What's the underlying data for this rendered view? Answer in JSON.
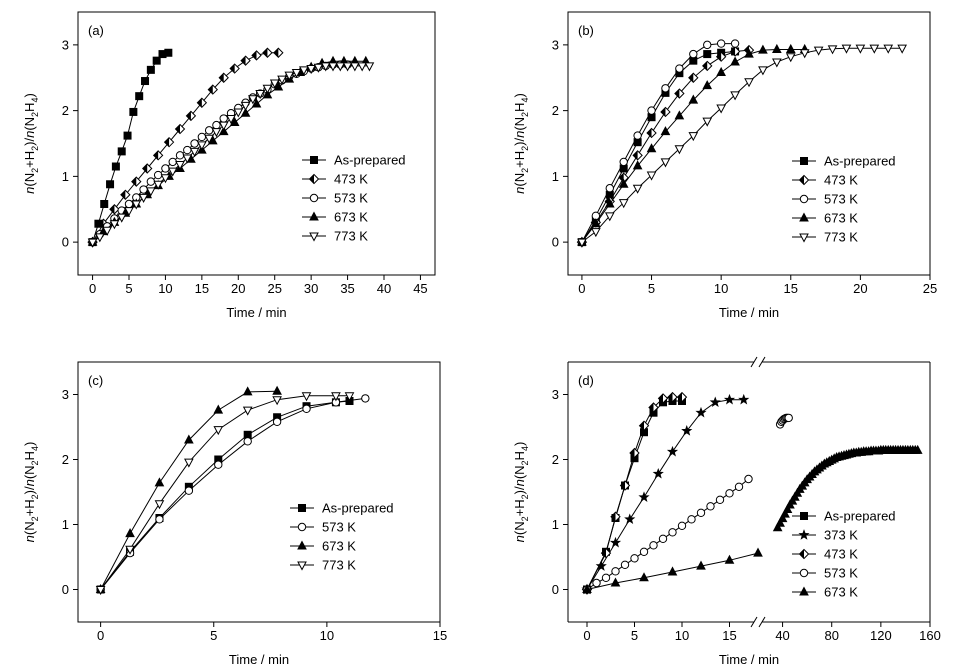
{
  "chart_data": [
    {
      "type": "line",
      "panel_label": "(a)",
      "xlabel": "Time / min",
      "ylabel_parts": [
        "n",
        "(N",
        "2",
        "+H",
        "2",
        ")/",
        "n",
        "(N",
        "2",
        "H",
        "4",
        ")"
      ],
      "xlim": [
        -2,
        47
      ],
      "ylim": [
        -0.5,
        3.5
      ],
      "xticks": [
        0,
        5,
        10,
        15,
        20,
        25,
        30,
        35,
        40,
        45
      ],
      "yticks": [
        0,
        1,
        2,
        3
      ],
      "legend_position": "right-middle",
      "series": [
        {
          "name": "As-prepared",
          "marker": "square-filled",
          "x": [
            0,
            0.8,
            1.6,
            2.4,
            3.2,
            4.0,
            4.8,
            5.6,
            6.4,
            7.2,
            8.0,
            8.8,
            9.6,
            10.4
          ],
          "y": [
            0,
            0.28,
            0.58,
            0.88,
            1.15,
            1.38,
            1.62,
            1.98,
            2.22,
            2.45,
            2.62,
            2.76,
            2.86,
            2.88
          ]
        },
        {
          "name": "473 K",
          "marker": "diamond-half",
          "x": [
            0,
            1.5,
            3,
            4.5,
            6,
            7.5,
            9,
            10.5,
            12,
            13.5,
            15,
            16.5,
            18,
            19.5,
            21,
            22.5,
            24,
            25.5
          ],
          "y": [
            0,
            0.28,
            0.5,
            0.72,
            0.92,
            1.12,
            1.32,
            1.52,
            1.72,
            1.92,
            2.12,
            2.32,
            2.5,
            2.64,
            2.76,
            2.84,
            2.88,
            2.88
          ]
        },
        {
          "name": "573 K",
          "marker": "circle-open",
          "x": [
            0,
            1,
            2,
            3,
            4,
            5,
            6,
            7,
            8,
            9,
            10,
            11,
            12,
            13,
            14,
            15,
            16,
            17,
            18,
            19,
            20,
            21,
            22,
            23,
            24,
            25,
            26,
            27,
            28,
            29,
            30,
            31,
            32,
            33,
            34,
            35
          ],
          "y": [
            0,
            0.12,
            0.24,
            0.36,
            0.48,
            0.58,
            0.68,
            0.8,
            0.92,
            1.02,
            1.12,
            1.22,
            1.32,
            1.4,
            1.5,
            1.6,
            1.7,
            1.78,
            1.88,
            1.96,
            2.04,
            2.12,
            2.2,
            2.26,
            2.32,
            2.4,
            2.46,
            2.52,
            2.56,
            2.6,
            2.64,
            2.66,
            2.68,
            2.7,
            2.7,
            2.7
          ]
        },
        {
          "name": "673 K",
          "marker": "triangle-up-filled",
          "x": [
            0,
            1.5,
            3,
            4.5,
            6,
            7.5,
            9,
            10.5,
            12,
            13.5,
            15,
            16.5,
            18,
            19.5,
            21,
            22.5,
            24,
            25.5,
            27,
            28.5,
            30,
            31.5,
            33,
            34.5,
            36,
            37.5
          ],
          "y": [
            0,
            0.16,
            0.3,
            0.44,
            0.58,
            0.72,
            0.86,
            1.0,
            1.12,
            1.26,
            1.4,
            1.54,
            1.68,
            1.82,
            1.96,
            2.1,
            2.24,
            2.36,
            2.48,
            2.58,
            2.66,
            2.72,
            2.75,
            2.75,
            2.75,
            2.75
          ]
        },
        {
          "name": "773 K",
          "marker": "triangle-down-open",
          "x": [
            0,
            1,
            2,
            3,
            4,
            5,
            6,
            7,
            8,
            9,
            10,
            11,
            12,
            13,
            14,
            15,
            16,
            17,
            18,
            19,
            20,
            21,
            22,
            23,
            24,
            25,
            26,
            27,
            28,
            29,
            30,
            31,
            32,
            33,
            34,
            35,
            36,
            37,
            38
          ],
          "y": [
            0,
            0.08,
            0.18,
            0.28,
            0.38,
            0.48,
            0.58,
            0.68,
            0.78,
            0.88,
            0.98,
            1.08,
            1.18,
            1.28,
            1.38,
            1.48,
            1.58,
            1.68,
            1.78,
            1.88,
            1.98,
            2.08,
            2.18,
            2.26,
            2.34,
            2.42,
            2.48,
            2.54,
            2.58,
            2.62,
            2.64,
            2.66,
            2.68,
            2.68,
            2.68,
            2.68,
            2.68,
            2.68,
            2.68
          ]
        }
      ]
    },
    {
      "type": "line",
      "panel_label": "(b)",
      "xlabel": "Time / min",
      "ylabel_parts": [
        "n",
        "(N",
        "2",
        "+H",
        "2",
        ")/",
        "n",
        "(N",
        "2",
        "H",
        "4",
        ")"
      ],
      "xlim": [
        -1,
        25
      ],
      "ylim": [
        -0.5,
        3.5
      ],
      "xticks": [
        0,
        5,
        10,
        15,
        20,
        25
      ],
      "yticks": [
        0,
        1,
        2,
        3
      ],
      "legend_position": "right-middle",
      "series": [
        {
          "name": "As-prepared",
          "marker": "square-filled",
          "x": [
            0,
            1,
            2,
            3,
            4,
            5,
            6,
            7,
            8,
            9,
            10,
            11
          ],
          "y": [
            0,
            0.33,
            0.72,
            1.12,
            1.52,
            1.9,
            2.27,
            2.57,
            2.76,
            2.86,
            2.88,
            2.9
          ]
        },
        {
          "name": "473 K",
          "marker": "diamond-half",
          "x": [
            0,
            1,
            2,
            3,
            4,
            5,
            6,
            7,
            8,
            9,
            10,
            11,
            12
          ],
          "y": [
            0,
            0.3,
            0.62,
            0.98,
            1.32,
            1.66,
            1.98,
            2.26,
            2.5,
            2.68,
            2.82,
            2.9,
            2.92
          ]
        },
        {
          "name": "573 K",
          "marker": "circle-open",
          "x": [
            0,
            1,
            2,
            3,
            4,
            5,
            6,
            7,
            8,
            9,
            10,
            11
          ],
          "y": [
            0,
            0.4,
            0.82,
            1.22,
            1.62,
            2.0,
            2.34,
            2.64,
            2.86,
            3.0,
            3.02,
            3.02
          ]
        },
        {
          "name": "673 K",
          "marker": "triangle-up-filled",
          "x": [
            0,
            1,
            2,
            3,
            4,
            5,
            6,
            7,
            8,
            9,
            10,
            11,
            12,
            13,
            14,
            15,
            16
          ],
          "y": [
            0,
            0.28,
            0.58,
            0.88,
            1.16,
            1.42,
            1.68,
            1.92,
            2.16,
            2.38,
            2.58,
            2.74,
            2.86,
            2.92,
            2.93,
            2.93,
            2.93
          ]
        },
        {
          "name": "773 K",
          "marker": "triangle-down-open",
          "x": [
            0,
            1,
            2,
            3,
            4,
            5,
            6,
            7,
            8,
            9,
            10,
            11,
            12,
            13,
            14,
            15,
            16,
            17,
            18,
            19,
            20,
            21,
            22,
            23
          ],
          "y": [
            0,
            0.16,
            0.4,
            0.6,
            0.82,
            1.02,
            1.22,
            1.42,
            1.62,
            1.84,
            2.04,
            2.24,
            2.44,
            2.62,
            2.74,
            2.82,
            2.88,
            2.92,
            2.94,
            2.95,
            2.95,
            2.95,
            2.95,
            2.95
          ]
        }
      ]
    },
    {
      "type": "line",
      "panel_label": "(c)",
      "xlabel": "Time / min",
      "ylabel_parts": [
        "n",
        "(N",
        "2",
        "+H",
        "2",
        ")/",
        "n",
        "(N",
        "2",
        "H",
        "4",
        ")"
      ],
      "xlim": [
        -1,
        15
      ],
      "ylim": [
        -0.5,
        3.5
      ],
      "xticks": [
        0,
        5,
        10,
        15
      ],
      "yticks": [
        0,
        1,
        2,
        3
      ],
      "legend_position": "right-middle",
      "series": [
        {
          "name": "As-prepared",
          "marker": "square-filled",
          "x": [
            0,
            1.3,
            2.6,
            3.9,
            5.2,
            6.5,
            7.8,
            9.1,
            10.4,
            11.0
          ],
          "y": [
            0,
            0.58,
            1.1,
            1.58,
            2.0,
            2.38,
            2.65,
            2.82,
            2.88,
            2.9
          ]
        },
        {
          "name": "573 K",
          "marker": "circle-open",
          "x": [
            0,
            1.3,
            2.6,
            3.9,
            5.2,
            6.5,
            7.8,
            9.1,
            10.4,
            11.7
          ],
          "y": [
            0,
            0.56,
            1.08,
            1.52,
            1.92,
            2.28,
            2.58,
            2.78,
            2.88,
            2.94
          ]
        },
        {
          "name": "673 K",
          "marker": "triangle-up-filled",
          "x": [
            0,
            1.3,
            2.6,
            3.9,
            5.2,
            6.5,
            7.8
          ],
          "y": [
            0,
            0.86,
            1.64,
            2.3,
            2.76,
            3.04,
            3.05
          ]
        },
        {
          "name": "773 K",
          "marker": "triangle-down-open",
          "x": [
            0,
            1.3,
            2.6,
            3.9,
            5.2,
            6.5,
            7.8,
            9.1,
            10.4,
            11.0
          ],
          "y": [
            0,
            0.62,
            1.32,
            1.96,
            2.46,
            2.76,
            2.92,
            2.98,
            2.98,
            2.98
          ]
        }
      ]
    },
    {
      "type": "line",
      "panel_label": "(d)",
      "xlabel": "Time / min",
      "ylabel_parts": [
        "n",
        "(N",
        "2",
        "+H",
        "2",
        ")/",
        "n",
        "(N",
        "2",
        "H",
        "4",
        ")"
      ],
      "axis_break": true,
      "xlim_left": [
        -2,
        18
      ],
      "xlim_right": [
        20,
        160
      ],
      "ylim": [
        -0.5,
        3.5
      ],
      "xticks_left": [
        0,
        5,
        10,
        15
      ],
      "xticks_right": [
        40,
        80,
        120,
        160
      ],
      "yticks": [
        0,
        1,
        2,
        3
      ],
      "legend_position": "right-bottom",
      "series": [
        {
          "name": "As-prepared",
          "marker": "square-filled",
          "x": [
            0,
            2,
            3,
            4,
            5,
            6,
            7,
            8,
            9,
            10
          ],
          "y": [
            0,
            0.58,
            1.1,
            1.6,
            2.02,
            2.42,
            2.72,
            2.88,
            2.9,
            2.9
          ]
        },
        {
          "name": "373 K",
          "marker": "star-filled",
          "x": [
            0,
            1.5,
            3,
            4.5,
            6,
            7.5,
            9,
            10.5,
            12,
            13.5,
            15,
            16.5
          ],
          "y": [
            0,
            0.36,
            0.72,
            1.08,
            1.42,
            1.78,
            2.12,
            2.44,
            2.72,
            2.88,
            2.92,
            2.92
          ]
        },
        {
          "name": "473 K",
          "marker": "diamond-half",
          "x": [
            0,
            2,
            3,
            4,
            5,
            6,
            7,
            8,
            9,
            10
          ],
          "y": [
            0,
            0.56,
            1.12,
            1.6,
            2.1,
            2.52,
            2.8,
            2.94,
            2.96,
            2.96
          ]
        },
        {
          "name": "573 K",
          "marker": "circle-open",
          "x": [
            0,
            1,
            2,
            3,
            4,
            5,
            6,
            7,
            8,
            9,
            10,
            11,
            12,
            13,
            14,
            15,
            16,
            17,
            38,
            39,
            40,
            41,
            42,
            43,
            44,
            45
          ],
          "y": [
            0,
            0.1,
            0.18,
            0.28,
            0.38,
            0.48,
            0.58,
            0.68,
            0.78,
            0.88,
            0.98,
            1.08,
            1.18,
            1.28,
            1.38,
            1.48,
            1.58,
            1.7,
            2.54,
            2.58,
            2.6,
            2.62,
            2.63,
            2.64,
            2.64,
            2.64
          ]
        },
        {
          "name": "673 K",
          "marker": "triangle-up-filled",
          "x": [
            0,
            3,
            6,
            9,
            12,
            15,
            18,
            36,
            38,
            40,
            42,
            44,
            46,
            48,
            50,
            52,
            54,
            56,
            58,
            60,
            62,
            64,
            66,
            68,
            70,
            72,
            74,
            76,
            78,
            80,
            82,
            84,
            86,
            88,
            90,
            92,
            94,
            96,
            98,
            100,
            102,
            104,
            106,
            108,
            110,
            112,
            114,
            116,
            118,
            120,
            122,
            124,
            126,
            128,
            130,
            132,
            134,
            136,
            138,
            140,
            142,
            144,
            146,
            148,
            150
          ],
          "y": [
            0,
            0.1,
            0.18,
            0.27,
            0.36,
            0.45,
            0.56,
            0.95,
            1.02,
            1.09,
            1.16,
            1.23,
            1.3,
            1.36,
            1.42,
            1.48,
            1.54,
            1.59,
            1.64,
            1.69,
            1.73,
            1.77,
            1.81,
            1.84,
            1.87,
            1.9,
            1.93,
            1.95,
            1.97,
            1.99,
            2.01,
            2.03,
            2.04,
            2.05,
            2.06,
            2.07,
            2.08,
            2.09,
            2.1,
            2.1,
            2.11,
            2.11,
            2.12,
            2.12,
            2.12,
            2.13,
            2.13,
            2.13,
            2.13,
            2.14,
            2.14,
            2.14,
            2.14,
            2.14,
            2.14,
            2.14,
            2.14,
            2.14,
            2.14,
            2.14,
            2.14,
            2.14,
            2.14,
            2.14,
            2.14
          ]
        }
      ]
    }
  ]
}
